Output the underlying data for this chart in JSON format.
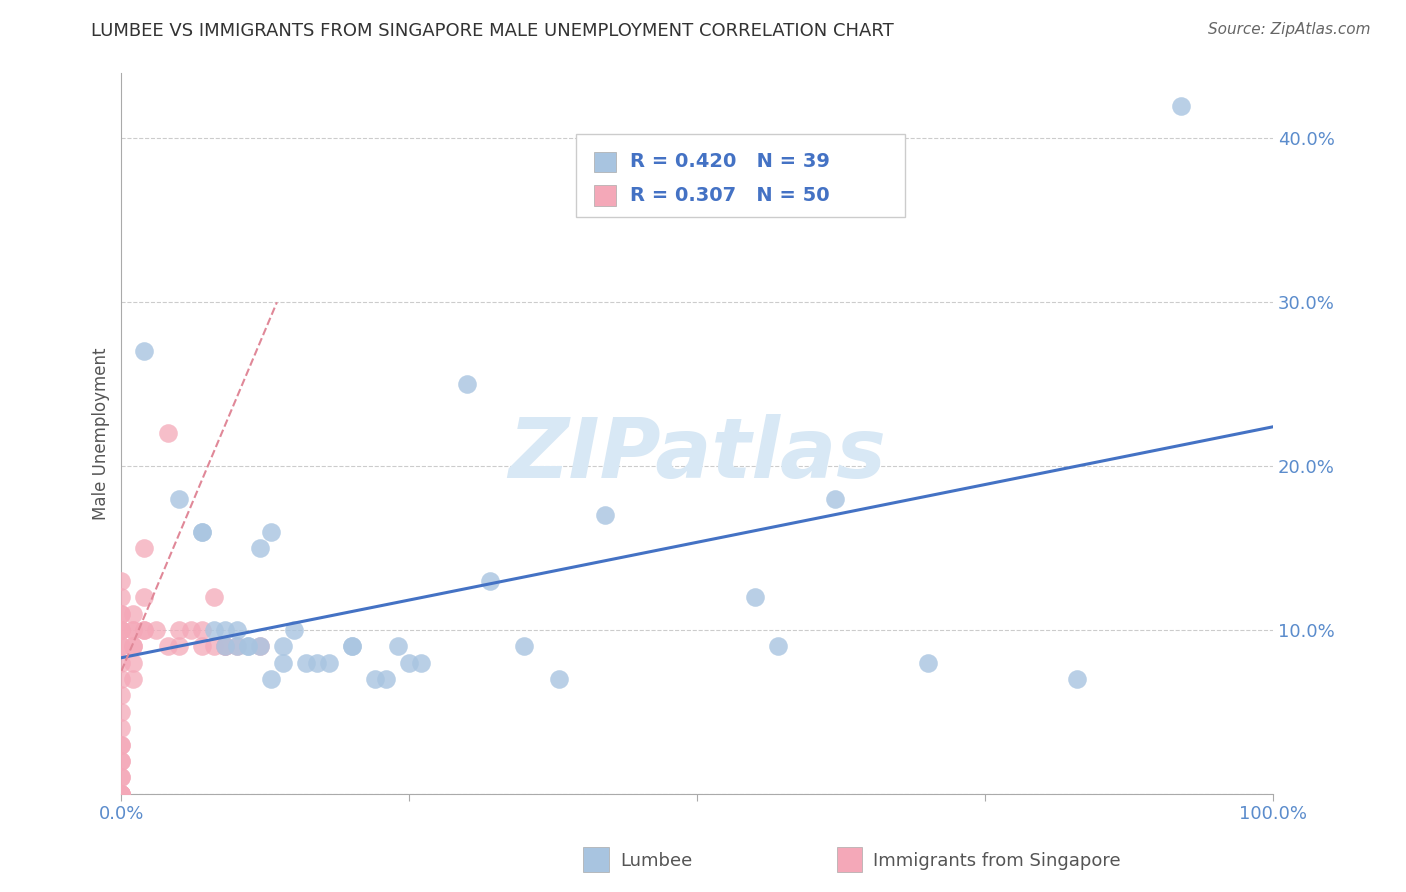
{
  "title": "LUMBEE VS IMMIGRANTS FROM SINGAPORE MALE UNEMPLOYMENT CORRELATION CHART",
  "source": "Source: ZipAtlas.com",
  "ylabel": "Male Unemployment",
  "xlim": [
    0.0,
    1.0
  ],
  "ylim": [
    0.0,
    0.44
  ],
  "yticks": [
    0.0,
    0.1,
    0.2,
    0.3,
    0.4
  ],
  "ytick_labels": [
    "",
    "10.0%",
    "20.0%",
    "30.0%",
    "40.0%"
  ],
  "xticks": [
    0.0,
    0.25,
    0.5,
    0.75,
    1.0
  ],
  "xtick_labels": [
    "0.0%",
    "",
    "",
    "",
    "100.0%"
  ],
  "legend_r_lumbee": "R = 0.420",
  "legend_n_lumbee": "N = 39",
  "legend_r_singapore": "R = 0.307",
  "legend_n_singapore": "N = 50",
  "lumbee_color": "#a8c4e0",
  "singapore_color": "#f4a8b8",
  "lumbee_line_color": "#4472c4",
  "singapore_line_color": "#e08898",
  "watermark_color": "#d8e8f5",
  "background_color": "#ffffff",
  "lumbee_x": [
    0.02,
    0.05,
    0.07,
    0.08,
    0.09,
    0.1,
    0.11,
    0.12,
    0.13,
    0.14,
    0.15,
    0.16,
    0.17,
    0.18,
    0.2,
    0.2,
    0.22,
    0.23,
    0.24,
    0.25,
    0.26,
    0.3,
    0.32,
    0.35,
    0.38,
    0.42,
    0.55,
    0.57,
    0.62,
    0.7,
    0.83,
    0.92,
    0.1,
    0.11,
    0.12,
    0.13,
    0.14,
    0.09,
    0.07
  ],
  "lumbee_y": [
    0.27,
    0.18,
    0.16,
    0.1,
    0.09,
    0.09,
    0.09,
    0.15,
    0.16,
    0.09,
    0.1,
    0.08,
    0.08,
    0.08,
    0.09,
    0.09,
    0.07,
    0.07,
    0.09,
    0.08,
    0.08,
    0.25,
    0.13,
    0.09,
    0.07,
    0.17,
    0.12,
    0.09,
    0.18,
    0.08,
    0.07,
    0.42,
    0.1,
    0.09,
    0.09,
    0.07,
    0.08,
    0.1,
    0.16
  ],
  "singapore_x": [
    0.0,
    0.0,
    0.0,
    0.0,
    0.0,
    0.0,
    0.0,
    0.0,
    0.0,
    0.0,
    0.0,
    0.0,
    0.0,
    0.0,
    0.0,
    0.0,
    0.0,
    0.0,
    0.0,
    0.0,
    0.0,
    0.0,
    0.0,
    0.0,
    0.0,
    0.01,
    0.01,
    0.01,
    0.01,
    0.01,
    0.01,
    0.01,
    0.02,
    0.02,
    0.02,
    0.02,
    0.03,
    0.04,
    0.04,
    0.05,
    0.05,
    0.06,
    0.07,
    0.07,
    0.08,
    0.08,
    0.09,
    0.09,
    0.1,
    0.12
  ],
  "singapore_y": [
    0.0,
    0.0,
    0.0,
    0.0,
    0.0,
    0.01,
    0.01,
    0.02,
    0.02,
    0.03,
    0.03,
    0.04,
    0.05,
    0.06,
    0.07,
    0.08,
    0.09,
    0.09,
    0.1,
    0.1,
    0.1,
    0.11,
    0.11,
    0.12,
    0.13,
    0.07,
    0.08,
    0.09,
    0.09,
    0.1,
    0.1,
    0.11,
    0.1,
    0.1,
    0.12,
    0.15,
    0.1,
    0.09,
    0.22,
    0.09,
    0.1,
    0.1,
    0.09,
    0.1,
    0.09,
    0.12,
    0.09,
    0.09,
    0.09,
    0.09
  ],
  "lumbee_trendline_x": [
    0.0,
    1.0
  ],
  "lumbee_trendline_y": [
    0.083,
    0.224
  ],
  "singapore_trendline_x": [
    0.0,
    0.135
  ],
  "singapore_trendline_y": [
    0.075,
    0.3
  ]
}
